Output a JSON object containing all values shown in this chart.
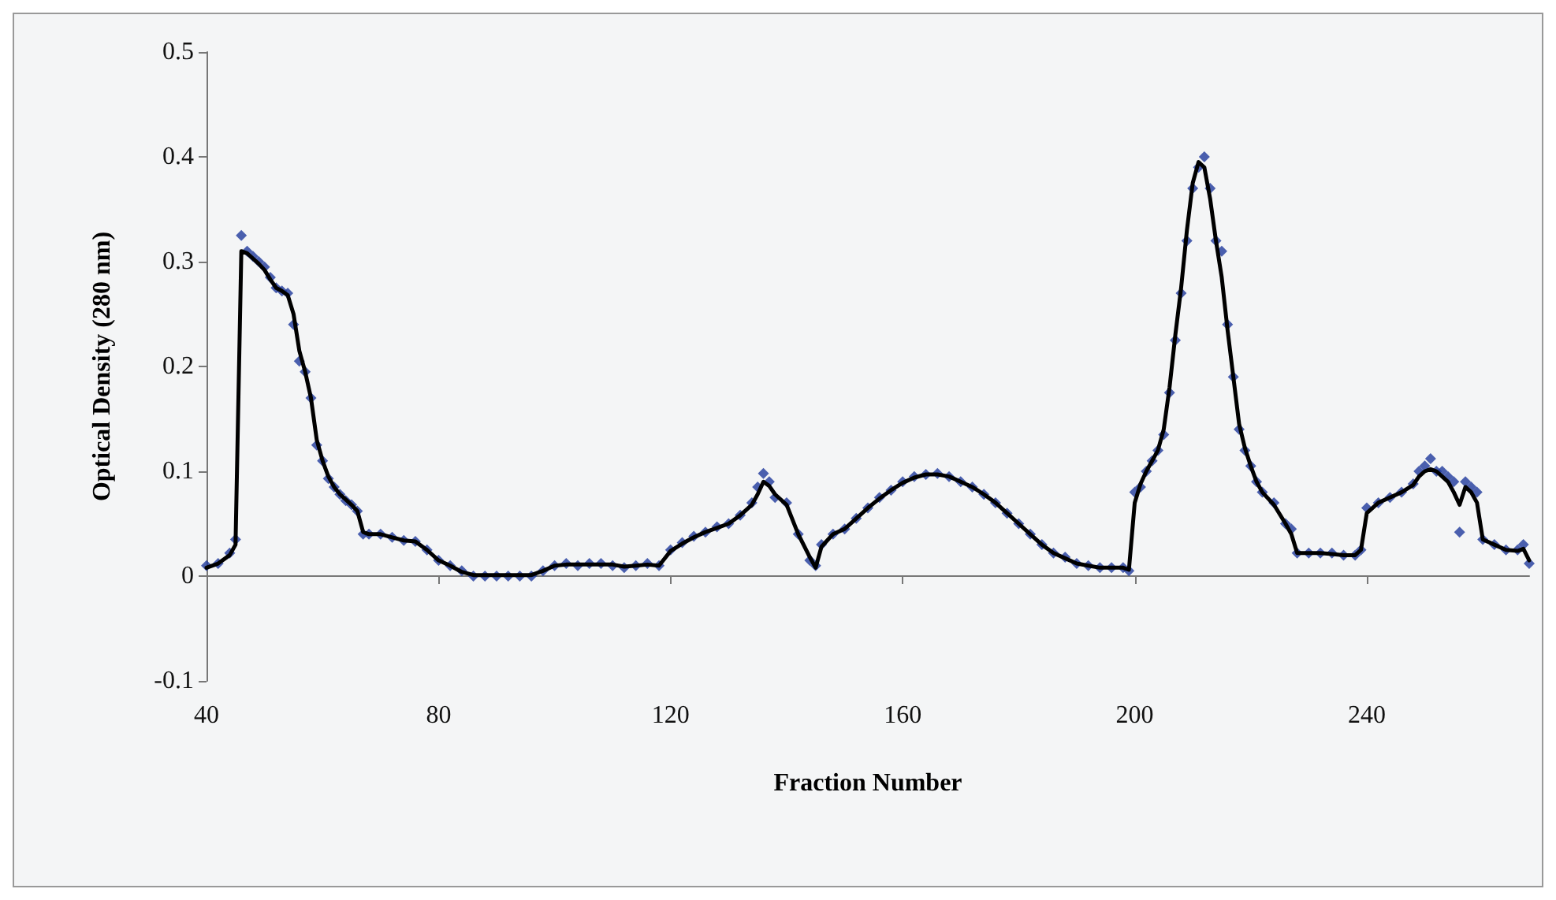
{
  "chart_data": {
    "type": "scatter",
    "xlabel": "Fraction Number",
    "ylabel": "Optical Density (280 nm)",
    "x": [
      40,
      42,
      44,
      45,
      46,
      47,
      48,
      49,
      50,
      51,
      52,
      53,
      54,
      55,
      56,
      57,
      58,
      59,
      60,
      61,
      62,
      63,
      64,
      65,
      66,
      67,
      68,
      70,
      72,
      74,
      76,
      78,
      80,
      82,
      84,
      86,
      88,
      90,
      92,
      94,
      96,
      98,
      100,
      102,
      104,
      106,
      108,
      110,
      112,
      114,
      116,
      118,
      120,
      122,
      124,
      126,
      128,
      130,
      132,
      134,
      135,
      136,
      137,
      138,
      140,
      142,
      144,
      145,
      146,
      148,
      150,
      152,
      154,
      156,
      158,
      160,
      162,
      164,
      166,
      168,
      170,
      172,
      174,
      176,
      178,
      180,
      182,
      184,
      186,
      188,
      190,
      192,
      194,
      196,
      198,
      199,
      200,
      201,
      202,
      203,
      204,
      205,
      206,
      207,
      208,
      209,
      210,
      211,
      212,
      213,
      214,
      215,
      216,
      217,
      218,
      219,
      220,
      221,
      222,
      224,
      226,
      227,
      228,
      230,
      232,
      234,
      236,
      238,
      239,
      240,
      242,
      244,
      246,
      248,
      249,
      250,
      251,
      252,
      253,
      254,
      255,
      256,
      257,
      258,
      259,
      260,
      262,
      264,
      266,
      267,
      268
    ],
    "series": [
      {
        "color": "#1f3a9c",
        "marker": "diamond",
        "values": [
          0.01,
          0.012,
          0.022,
          0.035,
          0.325,
          0.31,
          0.305,
          0.3,
          0.295,
          0.285,
          0.275,
          0.272,
          0.27,
          0.24,
          0.205,
          0.195,
          0.17,
          0.125,
          0.11,
          0.093,
          0.085,
          0.078,
          0.072,
          0.068,
          0.062,
          0.04,
          0.04,
          0.04,
          0.037,
          0.034,
          0.033,
          0.025,
          0.015,
          0.01,
          0.005,
          0,
          0,
          0,
          0,
          0,
          0,
          0.005,
          0.01,
          0.012,
          0.01,
          0.012,
          0.012,
          0.01,
          0.008,
          0.01,
          0.012,
          0.01,
          0.025,
          0.032,
          0.038,
          0.042,
          0.047,
          0.05,
          0.058,
          0.07,
          0.085,
          0.098,
          0.09,
          0.075,
          0.07,
          0.04,
          0.015,
          0.01,
          0.03,
          0.04,
          0.045,
          0.055,
          0.065,
          0.075,
          0.082,
          0.09,
          0.095,
          0.097,
          0.098,
          0.095,
          0.09,
          0.085,
          0.078,
          0.07,
          0.06,
          0.05,
          0.04,
          0.03,
          0.022,
          0.018,
          0.012,
          0.01,
          0.008,
          0.008,
          0.008,
          0.005,
          0.08,
          0.085,
          0.1,
          0.11,
          0.12,
          0.135,
          0.175,
          0.225,
          0.27,
          0.32,
          0.37,
          0.39,
          0.4,
          0.37,
          0.32,
          0.31,
          0.24,
          0.19,
          0.14,
          0.12,
          0.105,
          0.09,
          0.08,
          0.07,
          0.05,
          0.045,
          0.022,
          0.022,
          0.022,
          0.022,
          0.02,
          0.02,
          0.025,
          0.065,
          0.07,
          0.075,
          0.08,
          0.088,
          0.1,
          0.105,
          0.112,
          0.1,
          0.1,
          0.095,
          0.09,
          0.042,
          0.09,
          0.085,
          0.08,
          0.035,
          0.03,
          0.025,
          0.025,
          0.03,
          0.012
        ]
      },
      {
        "type": "line",
        "color": "#000000",
        "marker": "none",
        "line_style": "solid",
        "values": [
          0.008,
          0.012,
          0.02,
          0.03,
          0.31,
          0.308,
          0.303,
          0.298,
          0.292,
          0.283,
          0.275,
          0.272,
          0.268,
          0.25,
          0.215,
          0.195,
          0.17,
          0.13,
          0.11,
          0.095,
          0.085,
          0.078,
          0.073,
          0.068,
          0.062,
          0.042,
          0.04,
          0.04,
          0.037,
          0.034,
          0.033,
          0.025,
          0.015,
          0.01,
          0.004,
          0.001,
          0.001,
          0.001,
          0.001,
          0.001,
          0.001,
          0.005,
          0.01,
          0.011,
          0.011,
          0.011,
          0.011,
          0.011,
          0.009,
          0.01,
          0.011,
          0.01,
          0.024,
          0.031,
          0.037,
          0.042,
          0.046,
          0.05,
          0.058,
          0.068,
          0.078,
          0.09,
          0.086,
          0.078,
          0.068,
          0.04,
          0.018,
          0.008,
          0.028,
          0.04,
          0.045,
          0.055,
          0.065,
          0.074,
          0.082,
          0.089,
          0.094,
          0.097,
          0.097,
          0.095,
          0.09,
          0.085,
          0.078,
          0.07,
          0.06,
          0.05,
          0.04,
          0.03,
          0.022,
          0.017,
          0.012,
          0.01,
          0.008,
          0.008,
          0.008,
          0.006,
          0.07,
          0.088,
          0.1,
          0.11,
          0.12,
          0.14,
          0.18,
          0.23,
          0.275,
          0.33,
          0.375,
          0.395,
          0.39,
          0.36,
          0.32,
          0.285,
          0.235,
          0.19,
          0.145,
          0.122,
          0.105,
          0.09,
          0.08,
          0.068,
          0.05,
          0.04,
          0.022,
          0.022,
          0.022,
          0.021,
          0.02,
          0.02,
          0.025,
          0.06,
          0.07,
          0.075,
          0.08,
          0.087,
          0.095,
          0.1,
          0.102,
          0.1,
          0.095,
          0.09,
          0.08,
          0.068,
          0.085,
          0.08,
          0.07,
          0.035,
          0.03,
          0.025,
          0.024,
          0.026,
          0.015
        ]
      }
    ],
    "xlim": [
      40,
      268
    ],
    "xticks": [
      40,
      80,
      120,
      160,
      200,
      240
    ],
    "ylim": [
      -0.1,
      0.5
    ],
    "yticks": [
      -0.1,
      0,
      0.1,
      0.2,
      0.3,
      0.4,
      0.5
    ],
    "tick_labels": true
  }
}
